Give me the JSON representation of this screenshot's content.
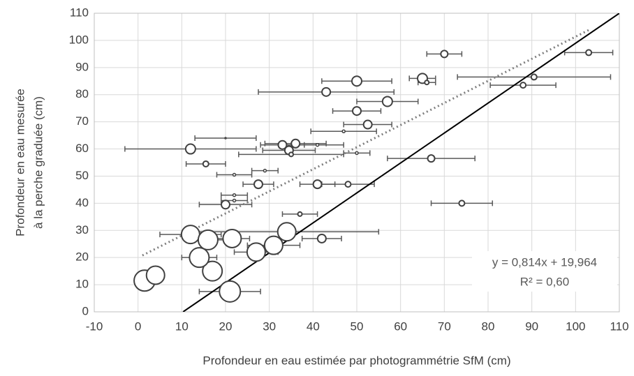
{
  "chart_data": {
    "type": "scatter",
    "xlabel": "Profondeur en eau estimée par photogrammétrie SfM (cm)",
    "ylabel": [
      "Profondeur en eau mesurée",
      "à la perche graduée (cm)"
    ],
    "xlim": [
      -10,
      110
    ],
    "xticks": [
      -10,
      0,
      10,
      20,
      30,
      40,
      50,
      60,
      70,
      80,
      90,
      100,
      110
    ],
    "ylim": [
      0,
      110
    ],
    "yticks": [
      0,
      10,
      20,
      30,
      40,
      50,
      60,
      70,
      80,
      90,
      100,
      110
    ],
    "grid": true,
    "series": [
      {
        "color": "#404040",
        "x": [
          1.5,
          4,
          21,
          17,
          14,
          12,
          16,
          21.5,
          27,
          31,
          34,
          42,
          37,
          74,
          20,
          22,
          22,
          27.5,
          41,
          48,
          67,
          22,
          29,
          15.5,
          12,
          33,
          34.5,
          35,
          36,
          41,
          50,
          47,
          52.5,
          50,
          57,
          43,
          50,
          65,
          66,
          70,
          103,
          90.5,
          88,
          20
        ],
        "values": [
          11.5,
          13.5,
          7.5,
          15,
          20,
          28.5,
          26.5,
          27,
          22,
          24.5,
          29.5,
          27,
          36,
          40,
          39.5,
          41,
          43,
          47,
          47,
          47,
          56.5,
          50.5,
          52,
          54.5,
          60,
          61.5,
          59.5,
          58,
          62,
          61.5,
          58.5,
          66.5,
          69,
          74,
          77.5,
          81,
          85,
          86,
          84.5,
          95,
          95.5,
          86.5,
          83.5,
          64
        ],
        "sizes": [
          15,
          13,
          15,
          14,
          14,
          13,
          14,
          13,
          13,
          13,
          13,
          6,
          3,
          4,
          6,
          2,
          2,
          6,
          6,
          4,
          5,
          2,
          2,
          4,
          7,
          6,
          6,
          3,
          6,
          2,
          2,
          2,
          6,
          6,
          7,
          6,
          7,
          7,
          3,
          5,
          4,
          4,
          4,
          1
        ],
        "xerr": [
          null,
          2,
          7,
          null,
          4,
          7,
          5,
          4,
          5,
          6,
          21,
          4.5,
          4,
          7,
          6,
          3,
          3,
          3.5,
          4,
          6,
          10,
          4,
          3,
          4.5,
          15,
          5,
          6,
          12,
          7,
          6,
          3,
          7.5,
          5.5,
          5.5,
          7,
          15.5,
          8,
          3,
          2,
          4,
          5.5,
          17.5,
          7.5,
          7
        ]
      }
    ],
    "reference_line": {
      "x": [
        10.3,
        110
      ],
      "y": [
        0,
        110
      ]
    },
    "trendline": {
      "slope": 0.814,
      "intercept": 19.964,
      "x": [
        1,
        103
      ]
    },
    "annotations": [
      "y = 0,814x + 19,964",
      "R² = 0,60"
    ]
  }
}
